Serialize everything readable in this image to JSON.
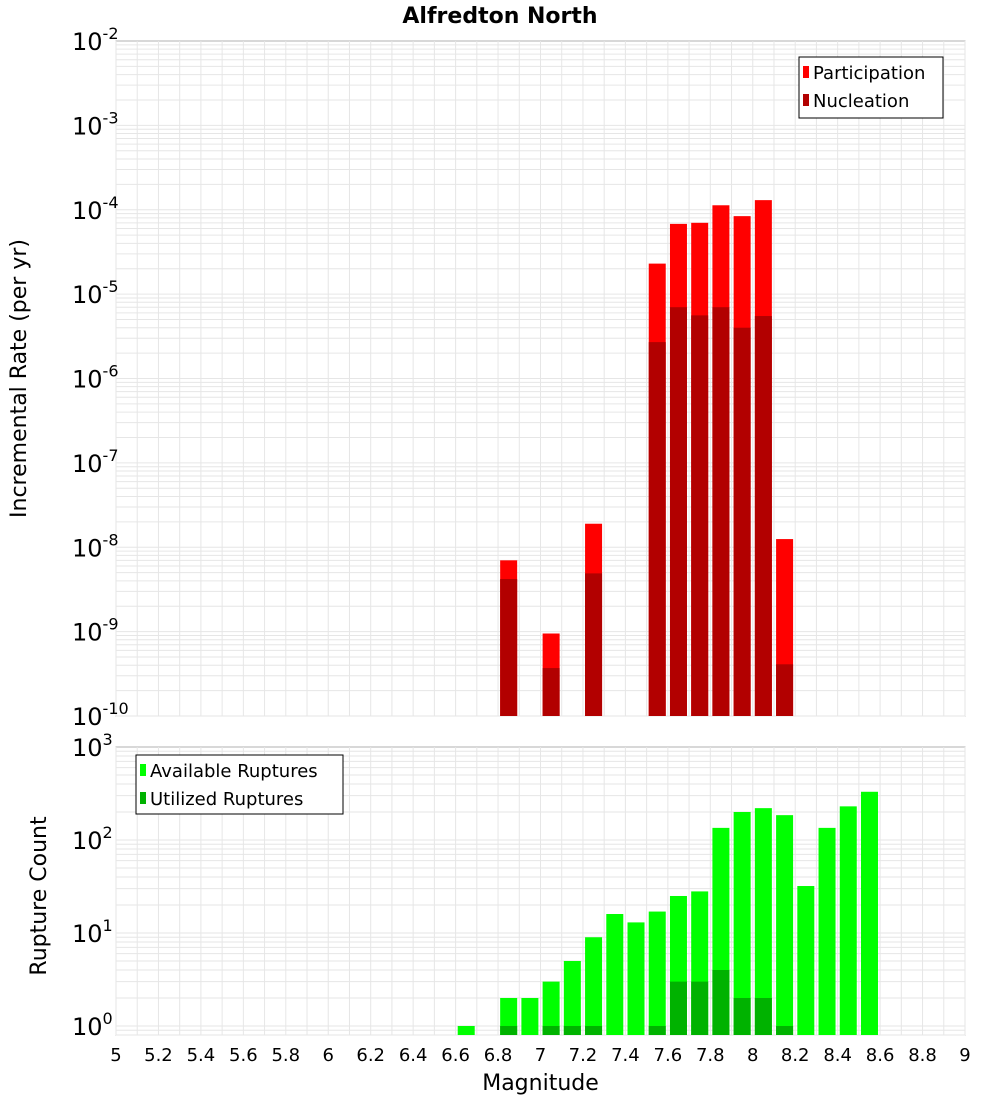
{
  "title": "Alfredton North",
  "colors": {
    "participation": "#ff0000",
    "nucleation": "#b20000",
    "available": "#00ff00",
    "utilized": "#00b200",
    "grid": "#e6e6e6",
    "frame": "#b0b0b0"
  },
  "chart_data": [
    {
      "type": "bar",
      "ylabel": "Incremental Rate (per yr)",
      "yscale": "log",
      "ylim": [
        1e-10,
        0.01
      ],
      "xlim": [
        5,
        9
      ],
      "grid": true,
      "legend_position": "top-right",
      "y_ticks": [
        {
          "base": "10",
          "exp": "-10",
          "value": 1e-10
        },
        {
          "base": "10",
          "exp": "-9",
          "value": 1e-09
        },
        {
          "base": "10",
          "exp": "-8",
          "value": 1e-08
        },
        {
          "base": "10",
          "exp": "-7",
          "value": 1e-07
        },
        {
          "base": "10",
          "exp": "-6",
          "value": 1e-06
        },
        {
          "base": "10",
          "exp": "-5",
          "value": 1e-05
        },
        {
          "base": "10",
          "exp": "-4",
          "value": 0.0001
        },
        {
          "base": "10",
          "exp": "-3",
          "value": 0.001
        },
        {
          "base": "10",
          "exp": "-2",
          "value": 0.01
        }
      ],
      "series": [
        {
          "name": "Participation",
          "color_key": "participation",
          "points": [
            {
              "x": 6.85,
              "y": 7e-09
            },
            {
              "x": 7.05,
              "y": 9.5e-10
            },
            {
              "x": 7.25,
              "y": 1.9e-08
            },
            {
              "x": 7.55,
              "y": 2.3e-05
            },
            {
              "x": 7.65,
              "y": 6.8e-05
            },
            {
              "x": 7.75,
              "y": 7e-05
            },
            {
              "x": 7.85,
              "y": 0.000113
            },
            {
              "x": 7.95,
              "y": 8.4e-05
            },
            {
              "x": 8.05,
              "y": 0.00013
            },
            {
              "x": 8.15,
              "y": 1.25e-08
            }
          ]
        },
        {
          "name": "Nucleation",
          "color_key": "nucleation",
          "points": [
            {
              "x": 6.85,
              "y": 4.2e-09
            },
            {
              "x": 7.05,
              "y": 3.7e-10
            },
            {
              "x": 7.25,
              "y": 4.9e-09
            },
            {
              "x": 7.55,
              "y": 2.7e-06
            },
            {
              "x": 7.65,
              "y": 7e-06
            },
            {
              "x": 7.75,
              "y": 5.6e-06
            },
            {
              "x": 7.85,
              "y": 7e-06
            },
            {
              "x": 7.95,
              "y": 4e-06
            },
            {
              "x": 8.05,
              "y": 5.5e-06
            },
            {
              "x": 8.15,
              "y": 4.1e-10
            }
          ]
        }
      ]
    },
    {
      "type": "bar",
      "xlabel": "Magnitude",
      "ylabel": "Rupture Count",
      "yscale": "log",
      "ylim": [
        0.8,
        1000
      ],
      "xlim": [
        5,
        9
      ],
      "grid": true,
      "legend_position": "top-left",
      "x_ticks": [
        "5",
        "5.2",
        "5.4",
        "5.6",
        "5.8",
        "6",
        "6.2",
        "6.4",
        "6.6",
        "6.8",
        "7",
        "7.2",
        "7.4",
        "7.6",
        "7.8",
        "8",
        "8.2",
        "8.4",
        "8.6",
        "8.8",
        "9"
      ],
      "y_ticks": [
        {
          "base": "10",
          "exp": "0",
          "value": 1
        },
        {
          "base": "10",
          "exp": "1",
          "value": 10
        },
        {
          "base": "10",
          "exp": "2",
          "value": 100
        },
        {
          "base": "10",
          "exp": "3",
          "value": 1000
        }
      ],
      "series": [
        {
          "name": "Available Ruptures",
          "color_key": "available",
          "points": [
            {
              "x": 6.65,
              "y": 1
            },
            {
              "x": 6.85,
              "y": 2
            },
            {
              "x": 6.95,
              "y": 2
            },
            {
              "x": 7.05,
              "y": 3
            },
            {
              "x": 7.15,
              "y": 5
            },
            {
              "x": 7.25,
              "y": 9
            },
            {
              "x": 7.35,
              "y": 16
            },
            {
              "x": 7.45,
              "y": 13
            },
            {
              "x": 7.55,
              "y": 17
            },
            {
              "x": 7.65,
              "y": 25
            },
            {
              "x": 7.75,
              "y": 28
            },
            {
              "x": 7.85,
              "y": 135
            },
            {
              "x": 7.95,
              "y": 200
            },
            {
              "x": 8.05,
              "y": 220
            },
            {
              "x": 8.15,
              "y": 185
            },
            {
              "x": 8.25,
              "y": 32
            },
            {
              "x": 8.35,
              "y": 135
            },
            {
              "x": 8.45,
              "y": 230
            },
            {
              "x": 8.55,
              "y": 330
            }
          ]
        },
        {
          "name": "Utilized Ruptures",
          "color_key": "utilized",
          "points": [
            {
              "x": 6.85,
              "y": 1
            },
            {
              "x": 7.05,
              "y": 1
            },
            {
              "x": 7.15,
              "y": 1
            },
            {
              "x": 7.25,
              "y": 1
            },
            {
              "x": 7.55,
              "y": 1
            },
            {
              "x": 7.65,
              "y": 3
            },
            {
              "x": 7.75,
              "y": 3
            },
            {
              "x": 7.85,
              "y": 4
            },
            {
              "x": 7.95,
              "y": 2
            },
            {
              "x": 8.05,
              "y": 2
            },
            {
              "x": 8.15,
              "y": 1
            }
          ]
        }
      ]
    }
  ]
}
